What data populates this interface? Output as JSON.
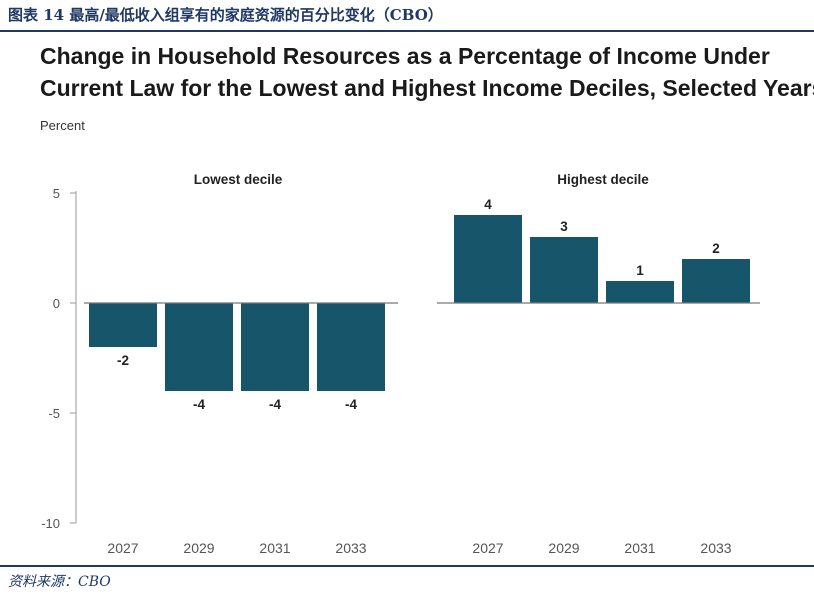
{
  "caption": "图表 14 最高/最低收入组享有的家庭资源的百分比变化（CBO）",
  "title_line1": "Change in Household Resources as a Percentage of Income Under",
  "title_line2": "Current Law for the Lowest and Highest Income Deciles, Selected Years",
  "unit": "Percent",
  "source": "资料来源：CBO",
  "colors": {
    "bar": "#17566a",
    "axis": "#999999",
    "tick_text": "#555555",
    "caption": "#1f3864"
  },
  "chart_data": [
    {
      "type": "bar",
      "title": "Lowest decile",
      "categories": [
        "2027",
        "2029",
        "2031",
        "2033"
      ],
      "values": [
        -2,
        -4,
        -4,
        -4
      ],
      "data_labels": [
        "-2",
        "-4",
        "-4",
        "-4"
      ],
      "ylabel": "Percent",
      "ylim": [
        -10,
        5
      ],
      "yticks": [
        "5",
        "0",
        "-5",
        "-10"
      ],
      "grid": false
    },
    {
      "type": "bar",
      "title": "Highest decile",
      "categories": [
        "2027",
        "2029",
        "2031",
        "2033"
      ],
      "values": [
        4,
        3,
        1,
        2
      ],
      "data_labels": [
        "4",
        "3",
        "1",
        "2"
      ],
      "ylabel": "Percent",
      "ylim": [
        -10,
        5
      ],
      "grid": false
    }
  ]
}
